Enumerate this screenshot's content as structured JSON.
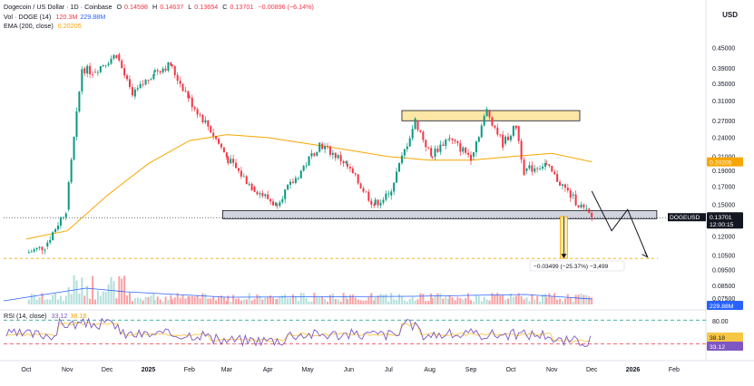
{
  "header": {
    "symbol": "Dogecoin / US Dollar · 1D · Coinbase",
    "o_label": "O",
    "o_val": "0.14598",
    "h_label": "H",
    "h_val": "0.14637",
    "l_label": "L",
    "l_val": "0.13654",
    "c_label": "C",
    "c_val": "0.13701",
    "change": "−0.00896 (−6.14%)",
    "vol_label": "Vol · DOGE (14)",
    "vol_val1": "120.3M",
    "vol_val2": "229.88M",
    "ema_label": "EMA (200, close)",
    "ema_val": "0.20205",
    "rsi_label": "RSI (14, close)",
    "rsi_val1": "33.12",
    "rsi_val2": "38.18"
  },
  "currency": "USD",
  "colors": {
    "up": "#089981",
    "down": "#f23645",
    "ema": "#f7a600",
    "rsi": "#7e57c2",
    "rsi_ma": "#f7c744",
    "volume_ma": "#2962ff",
    "zone_fill": "#fde7a6",
    "support_fill": "#d1d4dc",
    "target_line": "#f7a600"
  },
  "annotations": {
    "measure_label": "−0.03499 (−25.37%) −3,499",
    "price_tag_name": "DOGEUSD",
    "price_tag_price": "0.13701",
    "price_tag_time": "12:00:15",
    "ema_tag": "0.20205",
    "vol_tag": "229.88M",
    "rsi_tag1": "38.18",
    "rsi_tag2": "33.12",
    "rsi_level": "80.00",
    "vol_axis_label": "0.07500"
  },
  "chart_data": {
    "type": "candlestick",
    "xlabels": [
      "Oct",
      "Nov",
      "Dec",
      "2025",
      "Feb",
      "Mar",
      "Apr",
      "May",
      "Jun",
      "Jul",
      "Aug",
      "Sep",
      "Oct",
      "Nov",
      "Dec",
      "2026",
      "Feb"
    ],
    "yticks": [
      "0.45000",
      "0.39000",
      "0.35000",
      "0.31000",
      "0.27000",
      "0.24000",
      "0.21000",
      "0.19000",
      "0.17000",
      "0.15000",
      "0.12000",
      "0.10500",
      "0.09500",
      "0.08500"
    ],
    "ylabel": "USD",
    "log_scale": true,
    "ylim": [
      0.0775,
      0.52
    ],
    "price_path": [
      [
        "2024-10-01",
        0.107
      ],
      [
        "2024-10-15",
        0.112
      ],
      [
        "2024-10-31",
        0.145
      ],
      [
        "2024-11-12",
        0.39
      ],
      [
        "2024-11-20",
        0.38
      ],
      [
        "2024-12-08",
        0.43
      ],
      [
        "2024-12-20",
        0.32
      ],
      [
        "2025-01-05",
        0.38
      ],
      [
        "2025-01-18",
        0.4
      ],
      [
        "2025-01-31",
        0.32
      ],
      [
        "2025-02-15",
        0.26
      ],
      [
        "2025-03-01",
        0.21
      ],
      [
        "2025-03-20",
        0.17
      ],
      [
        "2025-04-07",
        0.15
      ],
      [
        "2025-04-22",
        0.18
      ],
      [
        "2025-05-10",
        0.23
      ],
      [
        "2025-05-30",
        0.2
      ],
      [
        "2025-06-20",
        0.15
      ],
      [
        "2025-07-01",
        0.16
      ],
      [
        "2025-07-21",
        0.27
      ],
      [
        "2025-08-02",
        0.21
      ],
      [
        "2025-08-15",
        0.24
      ],
      [
        "2025-09-01",
        0.21
      ],
      [
        "2025-09-13",
        0.29
      ],
      [
        "2025-09-25",
        0.23
      ],
      [
        "2025-10-05",
        0.26
      ],
      [
        "2025-10-11",
        0.19
      ],
      [
        "2025-10-27",
        0.2
      ],
      [
        "2025-11-15",
        0.16
      ],
      [
        "2025-11-25",
        0.145
      ],
      [
        "2025-12-01",
        0.137
      ]
    ],
    "ema200_path": [
      [
        "2024-10-01",
        0.118
      ],
      [
        "2024-11-01",
        0.125
      ],
      [
        "2024-12-01",
        0.16
      ],
      [
        "2025-01-01",
        0.2
      ],
      [
        "2025-02-01",
        0.235
      ],
      [
        "2025-03-01",
        0.245
      ],
      [
        "2025-04-01",
        0.24
      ],
      [
        "2025-05-01",
        0.23
      ],
      [
        "2025-06-01",
        0.22
      ],
      [
        "2025-07-01",
        0.21
      ],
      [
        "2025-08-01",
        0.205
      ],
      [
        "2025-09-01",
        0.205
      ],
      [
        "2025-10-01",
        0.21
      ],
      [
        "2025-11-01",
        0.215
      ],
      [
        "2025-12-01",
        0.2025
      ]
    ],
    "resistance_zone": [
      0.27,
      0.29
    ],
    "support_zone": [
      0.136,
      0.144
    ],
    "target_level": 0.103,
    "projection_path": [
      [
        "2025-12-01",
        0.165
      ],
      [
        "2025-12-16",
        0.125
      ],
      [
        "2025-12-28",
        0.145
      ],
      [
        "2026-01-12",
        0.104
      ]
    ],
    "volume_axis": [
      "0.07500"
    ],
    "rsi": {
      "level_upper": 80,
      "level_lower": 30,
      "latest": 33.12,
      "ma": 38.18
    }
  }
}
